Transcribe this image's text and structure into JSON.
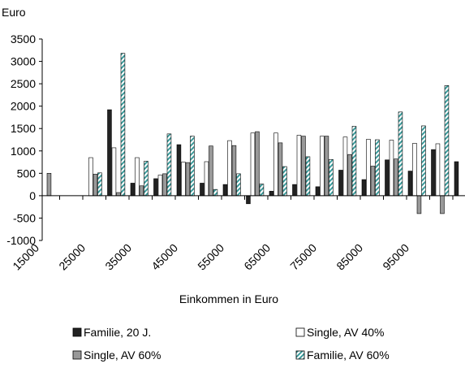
{
  "chart_data": {
    "type": "bar",
    "y_label": "Euro",
    "x_label": "Einkommen in Euro",
    "categories": [
      "15000",
      null,
      "25000",
      null,
      "35000",
      null,
      "45000",
      null,
      "55000",
      null,
      "65000",
      null,
      "75000",
      null,
      "85000",
      null,
      "95000",
      null,
      null
    ],
    "series": [
      {
        "name": "Familie, 20 J.",
        "color": "#222222",
        "values": [
          null,
          null,
          null,
          1920,
          280,
          380,
          1140,
          280,
          250,
          -180,
          100,
          250,
          200,
          570,
          360,
          800,
          550,
          1030,
          760
        ]
      },
      {
        "name": "Single, AV 40%",
        "color": "#ffffff",
        "values": [
          null,
          null,
          850,
          1070,
          850,
          460,
          750,
          760,
          1230,
          1400,
          1400,
          1350,
          1330,
          1310,
          1260,
          1240,
          1170,
          1160,
          null
        ]
      },
      {
        "name": "Single, AV 60%",
        "color": "#999999",
        "values": [
          500,
          null,
          480,
          70,
          220,
          490,
          740,
          1110,
          1120,
          1430,
          1180,
          1330,
          1330,
          920,
          660,
          820,
          -400,
          -400,
          null
        ]
      },
      {
        "name": "Familie, AV 60%",
        "color": "#5fc8c8",
        "pattern": "hatch",
        "values": [
          null,
          null,
          510,
          3180,
          770,
          1380,
          1330,
          140,
          490,
          260,
          650,
          870,
          810,
          1550,
          1250,
          1870,
          1560,
          2460,
          null
        ]
      }
    ],
    "ylim": [
      -1000,
      3500
    ],
    "yticks": [
      -1000,
      -500,
      0,
      500,
      1000,
      1500,
      2000,
      2500,
      3000,
      3500
    ],
    "legend": "bottom"
  }
}
